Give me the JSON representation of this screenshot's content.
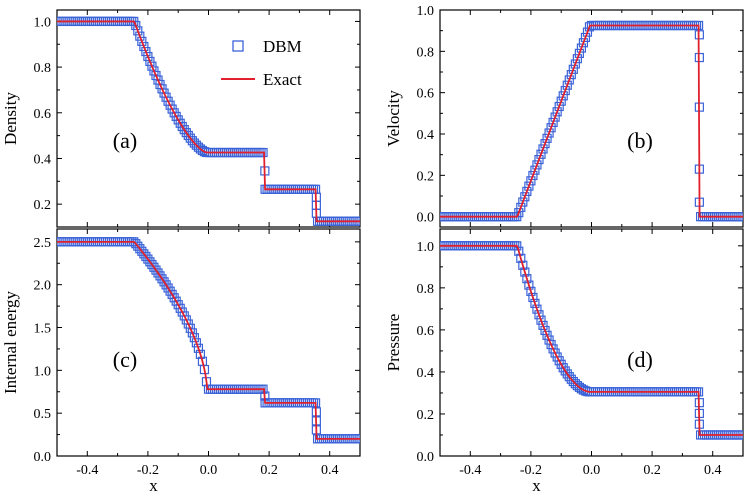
{
  "chart_data": {
    "type": "line",
    "xlabel": "x",
    "xlim": [
      -0.5,
      0.5
    ],
    "xticks": [
      "-0.4",
      "-0.2",
      "0.0",
      "0.2",
      "0.4"
    ],
    "xtick_values": [
      -0.4,
      -0.2,
      0.0,
      0.2,
      0.4
    ],
    "legend": [
      {
        "name": "DBM",
        "marker": "square-open",
        "color": "#3a63d8"
      },
      {
        "name": "Exact",
        "marker": "line",
        "color": "#e0202c"
      }
    ],
    "colors": {
      "dbm": "#3a63d8",
      "exact": "#e0202c"
    },
    "panels": [
      {
        "id": "a",
        "label": "(a)",
        "ylabel": "Density",
        "ylim": [
          0.1,
          1.05
        ],
        "yticks": [
          "0.2",
          "0.4",
          "0.6",
          "0.8",
          "1.0"
        ],
        "ytick_values": [
          0.2,
          0.4,
          0.6,
          0.8,
          1.0
        ],
        "profile": {
          "left": 1.0,
          "fan_start": -0.245,
          "fan_end": -0.005,
          "fan_exponent": 1.5,
          "plateau": 0.426,
          "contact": 0.186,
          "mid": 0.265,
          "shock": 0.356,
          "right": 0.125,
          "overshoot": 0.01
        }
      },
      {
        "id": "b",
        "label": "(b)",
        "ylabel": "Velocity",
        "ylim": [
          -0.05,
          1.0
        ],
        "yticks": [
          "0.0",
          "0.2",
          "0.4",
          "0.6",
          "0.8",
          "1.0"
        ],
        "ytick_values": [
          0.0,
          0.2,
          0.4,
          0.6,
          0.8,
          1.0
        ],
        "profile": {
          "left": 0.0,
          "fan_start": -0.245,
          "fan_end": -0.005,
          "fan_exponent": 1.0,
          "plateau": 0.925,
          "contact": null,
          "mid": 0.925,
          "shock": 0.356,
          "right": 0.0,
          "overshoot": 0.0
        },
        "shock_markers": [
          0.88,
          0.77,
          0.53,
          0.23,
          0.07
        ]
      },
      {
        "id": "c",
        "label": "(c)",
        "ylabel": "Internal energy",
        "ylim": [
          0.0,
          2.65
        ],
        "yticks": [
          "0.0",
          "0.5",
          "1.0",
          "1.5",
          "2.0",
          "2.5"
        ],
        "ytick_values": [
          0.0,
          0.5,
          1.0,
          1.5,
          2.0,
          2.5
        ],
        "profile": {
          "left": 2.5,
          "fan_start": -0.245,
          "fan_end": -0.005,
          "fan_exponent": 0.6,
          "plateau": 0.78,
          "contact": 0.186,
          "mid": 0.62,
          "shock": 0.356,
          "right": 0.2,
          "overshoot": 0.0
        }
      },
      {
        "id": "d",
        "label": "(d)",
        "ylabel": "Pressure",
        "ylim": [
          0.0,
          1.08
        ],
        "yticks": [
          "0.0",
          "0.2",
          "0.4",
          "0.6",
          "0.8",
          "1.0"
        ],
        "ytick_values": [
          0.0,
          0.2,
          0.4,
          0.6,
          0.8,
          1.0
        ],
        "profile": {
          "left": 1.0,
          "fan_start": -0.245,
          "fan_end": -0.005,
          "fan_exponent": 1.8,
          "plateau": 0.305,
          "contact": null,
          "mid": 0.305,
          "shock": 0.356,
          "right": 0.1,
          "overshoot": 0.0
        }
      }
    ]
  }
}
